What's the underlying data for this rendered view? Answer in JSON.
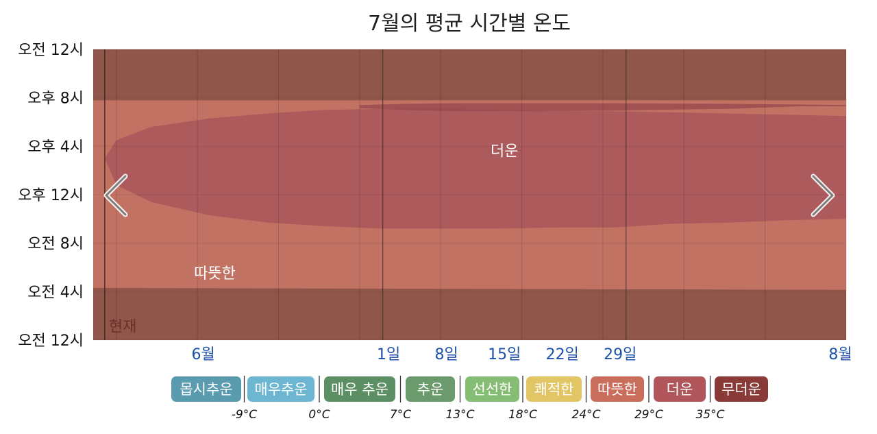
{
  "chart_data": {
    "type": "area",
    "title": "7월의 평균 시간별 온도",
    "y_tick_labels": [
      "오전 12시",
      "오후 8시",
      "오후 4시",
      "오후 12시",
      "오전 8시",
      "오전 4시",
      "오전 12시"
    ],
    "x_month_labels": [
      {
        "label": "6월",
        "day": 4.5
      },
      {
        "label": "8월",
        "day": 59.5
      }
    ],
    "x_day_labels": [
      {
        "label": "1일",
        "day": 20.5
      },
      {
        "label": "8일",
        "day": 25.5
      },
      {
        "label": "15일",
        "day": 30.5
      },
      {
        "label": "22일",
        "day": 35.5
      },
      {
        "label": "29일",
        "day": 40.5
      }
    ],
    "x_range_days": [
      -5,
      60
    ],
    "month_boundaries_days": [
      20,
      41
    ],
    "now_day": -4,
    "now_label": "현재",
    "zone_labels": {
      "hot": "더운",
      "warm": "따뜻한"
    },
    "bands": {
      "warm_begin": [
        [
          -5,
          4.3
        ],
        [
          60,
          4.15
        ]
      ],
      "warm_end": [
        [
          -5,
          19.8
        ],
        [
          60,
          19.8
        ]
      ],
      "hot_begin": [
        [
          -4,
          15.0
        ],
        [
          -3,
          12.8
        ],
        [
          0,
          11.4
        ],
        [
          5,
          10.3
        ],
        [
          10,
          9.7
        ],
        [
          15,
          9.4
        ],
        [
          20,
          9.2
        ],
        [
          25,
          9.2
        ],
        [
          30,
          9.2
        ],
        [
          35,
          9.3
        ],
        [
          40,
          9.3
        ],
        [
          45,
          9.6
        ],
        [
          50,
          9.7
        ],
        [
          55,
          9.9
        ],
        [
          60,
          10.0
        ]
      ],
      "hot_end": [
        [
          -4,
          15.0
        ],
        [
          -3,
          16.5
        ],
        [
          0,
          17.6
        ],
        [
          5,
          18.3
        ],
        [
          10,
          18.7
        ],
        [
          15,
          19.0
        ],
        [
          20,
          19.1
        ],
        [
          25,
          19.1
        ],
        [
          30,
          19.0
        ],
        [
          35,
          18.9
        ],
        [
          40,
          18.9
        ],
        [
          45,
          18.8
        ],
        [
          50,
          18.7
        ],
        [
          55,
          18.6
        ],
        [
          60,
          18.5
        ]
      ],
      "hotter_begin": [
        [
          18,
          19.15
        ],
        [
          22,
          19.0
        ],
        [
          26,
          18.9
        ],
        [
          34,
          18.9
        ],
        [
          40,
          18.95
        ],
        [
          50,
          19.1
        ],
        [
          56,
          19.3
        ],
        [
          60,
          19.3
        ]
      ],
      "hotter_end": [
        [
          18,
          19.4
        ],
        [
          22,
          19.5
        ],
        [
          26,
          19.55
        ],
        [
          34,
          19.55
        ],
        [
          40,
          19.55
        ],
        [
          50,
          19.5
        ],
        [
          56,
          19.45
        ],
        [
          60,
          19.4
        ]
      ]
    },
    "legend": [
      {
        "label": "몹시추운",
        "color": "#5a9bb0"
      },
      {
        "label": "매우추운",
        "color": "#6db6d2"
      },
      {
        "label": "매우 추운",
        "color": "#5c8f64"
      },
      {
        "label": "추운",
        "color": "#6b9a6c"
      },
      {
        "label": "선선한",
        "color": "#86bd74"
      },
      {
        "label": "쾌적한",
        "color": "#e2c564"
      },
      {
        "label": "따뜻한",
        "color": "#c96d5c"
      },
      {
        "label": "더운",
        "color": "#b0555a"
      },
      {
        "label": "무더운",
        "color": "#8a3a37"
      }
    ],
    "temp_thresholds": [
      "-9°C",
      "0°C",
      "7°C",
      "13°C",
      "18°C",
      "24°C",
      "29°C",
      "35°C"
    ],
    "colors": {
      "night": "#8f5649",
      "warm": "#c27262",
      "hot": "#ad5a5d",
      "hotter": "#96474d",
      "title_text": "#1f1f1f",
      "x_label": "#1c4fa8"
    }
  }
}
